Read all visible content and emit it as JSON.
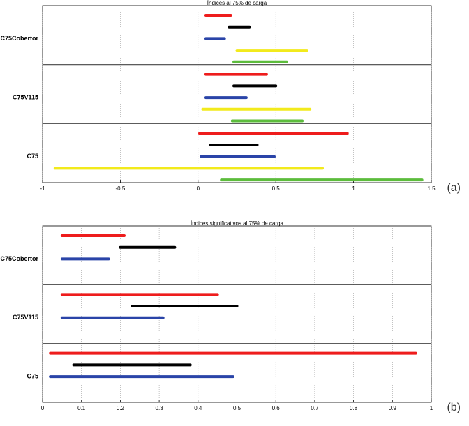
{
  "chart_data": [
    {
      "type": "interval",
      "title": "Índices al 75% de carga",
      "label": "(a)",
      "categories": [
        "C75Cobertor",
        "C75V115",
        "C75"
      ],
      "xlim": [
        -1,
        1.5
      ],
      "xticks": [
        -1,
        -0.5,
        0,
        0.5,
        1,
        1.5
      ],
      "grid": true,
      "series": [
        {
          "color": "#ee1c1c",
          "values": [
            [
              0.05,
              0.21
            ],
            [
              0.05,
              0.44
            ],
            [
              0.01,
              0.96
            ]
          ]
        },
        {
          "color": "#000000",
          "values": [
            [
              0.2,
              0.33
            ],
            [
              0.23,
              0.5
            ],
            [
              0.08,
              0.38
            ]
          ]
        },
        {
          "color": "#2a44a8",
          "values": [
            [
              0.05,
              0.17
            ],
            [
              0.05,
              0.31
            ],
            [
              0.02,
              0.49
            ]
          ]
        },
        {
          "color": "#f2ea1c",
          "values": [
            [
              0.25,
              0.7
            ],
            [
              0.03,
              0.72
            ],
            [
              -0.92,
              0.8
            ]
          ]
        },
        {
          "color": "#5cbc3c",
          "values": [
            [
              0.23,
              0.57
            ],
            [
              0.22,
              0.67
            ],
            [
              0.15,
              1.44
            ]
          ]
        }
      ]
    },
    {
      "type": "interval",
      "title": "Índices significativos al 75% de carga",
      "label": "(b)",
      "categories": [
        "C75Cobertor",
        "C75V115",
        "C75"
      ],
      "xlim": [
        0,
        1
      ],
      "xticks": [
        0,
        0.1,
        0.2,
        0.3,
        0.4,
        0.5,
        0.6,
        0.7,
        0.8,
        0.9,
        1
      ],
      "grid": true,
      "series": [
        {
          "color": "#ee1c1c",
          "values": [
            [
              0.05,
              0.21
            ],
            [
              0.05,
              0.45
            ],
            [
              0.02,
              0.96
            ]
          ]
        },
        {
          "color": "#000000",
          "values": [
            [
              0.2,
              0.34
            ],
            [
              0.23,
              0.5
            ],
            [
              0.08,
              0.38
            ]
          ]
        },
        {
          "color": "#2a44a8",
          "values": [
            [
              0.05,
              0.17
            ],
            [
              0.05,
              0.31
            ],
            [
              0.02,
              0.49
            ]
          ]
        }
      ]
    }
  ]
}
